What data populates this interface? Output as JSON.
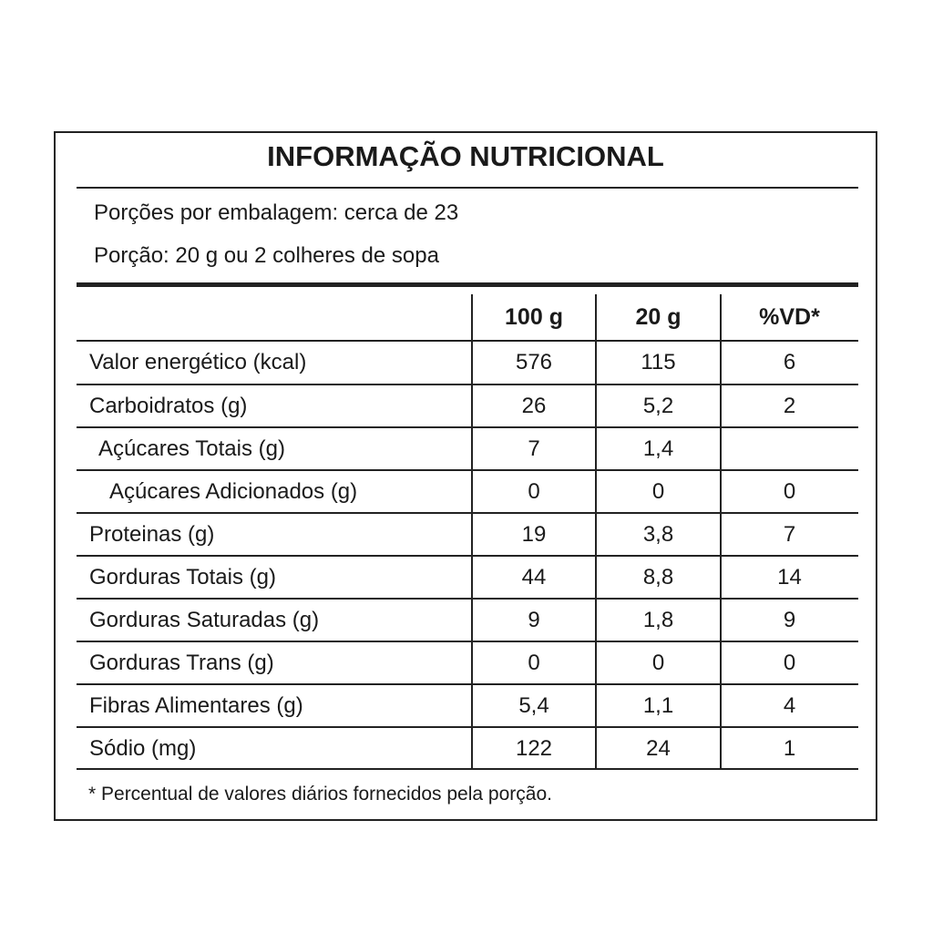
{
  "title": "INFORMAÇÃO NUTRICIONAL",
  "servings_per_package": "Porções por embalagem: cerca de 23",
  "serving_size": "Porção: 20 g ou 2 colheres de sopa",
  "columns": [
    "100 g",
    "20 g",
    "%VD*"
  ],
  "rows": [
    {
      "label": "Valor energético (kcal)",
      "v100": "576",
      "v20": "115",
      "vd": "6",
      "indent": 0
    },
    {
      "label": "Carboidratos (g)",
      "v100": "26",
      "v20": "5,2",
      "vd": "2",
      "indent": 0
    },
    {
      "label": "Açúcares Totais (g)",
      "v100": "7",
      "v20": "1,4",
      "vd": "",
      "indent": 1
    },
    {
      "label": "Açúcares Adicionados (g)",
      "v100": "0",
      "v20": "0",
      "vd": "0",
      "indent": 2
    },
    {
      "label": "Proteinas (g)",
      "v100": "19",
      "v20": "3,8",
      "vd": "7",
      "indent": 0
    },
    {
      "label": "Gorduras Totais (g)",
      "v100": "44",
      "v20": "8,8",
      "vd": "14",
      "indent": 0
    },
    {
      "label": "Gorduras Saturadas (g)",
      "v100": "9",
      "v20": "1,8",
      "vd": "9",
      "indent": 0
    },
    {
      "label": "Gorduras Trans (g)",
      "v100": "0",
      "v20": "0",
      "vd": "0",
      "indent": 0
    },
    {
      "label": "Fibras Alimentares (g)",
      "v100": "5,4",
      "v20": "1,1",
      "vd": "4",
      "indent": 0
    },
    {
      "label": "Sódio (mg)",
      "v100": "122",
      "v20": "24",
      "vd": "1",
      "indent": 0
    }
  ],
  "footnote": "* Percentual de valores diários fornecidos pela porção."
}
